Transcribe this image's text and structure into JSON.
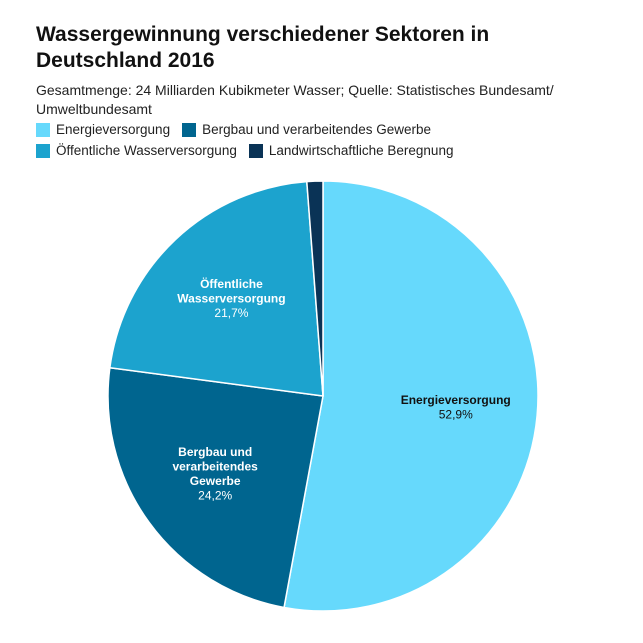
{
  "chart_data": {
    "type": "pie",
    "title": "Wassergewinnung verschiedener Sektoren in Deutschland 2016",
    "subtitle": "Gesamtmenge: 24 Milliarden Kubikmeter Wasser; Quelle: Statistisches Bundesamt/ Umweltbundesamt",
    "legend_position": "top",
    "unit": "%",
    "slices": [
      {
        "label": "Energieversorgung",
        "value": 52.9,
        "value_label": "52,9%",
        "color": "#66d9fc",
        "label_lines": [
          "Energieversorgung"
        ],
        "label_color": "#111111"
      },
      {
        "label": "Bergbau und verarbeitendes Gewerbe",
        "value": 24.2,
        "value_label": "24,2%",
        "color": "#00658f",
        "label_lines": [
          "Bergbau und",
          "verarbeitendes",
          "Gewerbe"
        ],
        "label_color": "#ffffff"
      },
      {
        "label": "Öffentliche Wasserversorgung",
        "value": 21.7,
        "value_label": "21,7%",
        "color": "#1ca3ce",
        "label_lines": [
          "Öffentliche",
          "Wasserversorgung"
        ],
        "label_color": "#ffffff"
      },
      {
        "label": "Landwirtschaftliche Beregnung",
        "value": 1.2,
        "value_label": "",
        "color": "#0a3356",
        "label_lines": [],
        "label_color": "#ffffff"
      }
    ]
  }
}
